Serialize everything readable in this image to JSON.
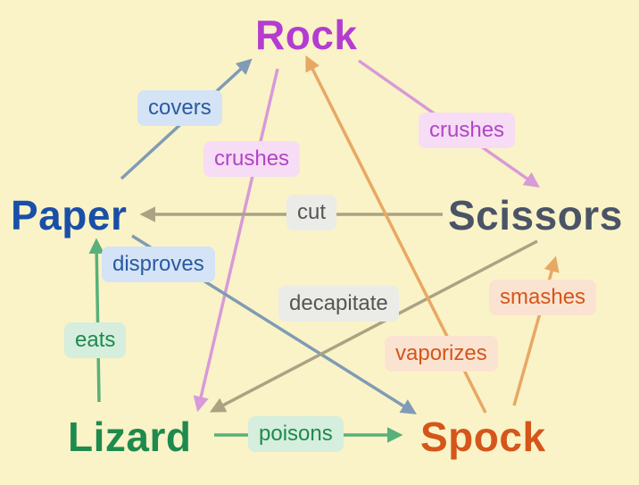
{
  "colors": {
    "background": "#faf3c7",
    "rock": "#b43cd0",
    "paper": "#1a4fa8",
    "scissors": "#4a5466",
    "lizard": "#1e8a4e",
    "spock": "#d4561a"
  },
  "nodes": {
    "rock": "Rock",
    "paper": "Paper",
    "scissors": "Scissors",
    "lizard": "Lizard",
    "spock": "Spock"
  },
  "edges": {
    "paper_covers_rock": "covers",
    "rock_crushes_lizard": "crushes",
    "rock_crushes_scissors": "crushes",
    "scissors_cut_paper": "cut",
    "paper_disproves_spock": "disproves",
    "scissors_decapitate_lizard": "decapitate",
    "lizard_eats_paper": "eats",
    "spock_vaporizes_rock": "vaporizes",
    "spock_smashes_scissors": "smashes",
    "lizard_poisons_spock": "poisons"
  }
}
